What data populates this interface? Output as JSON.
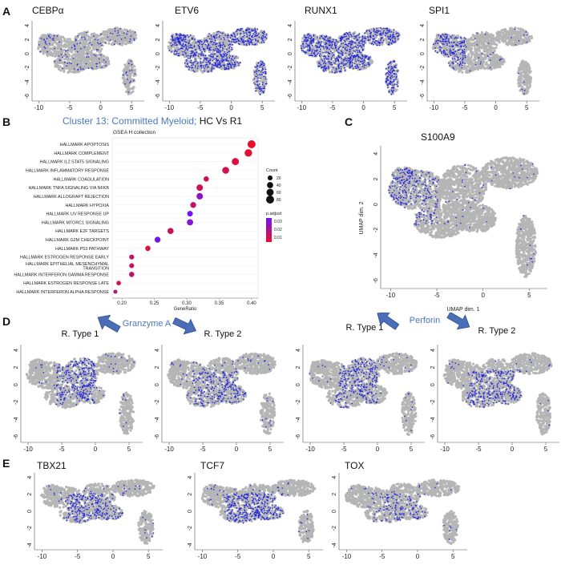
{
  "panel_letters": {
    "a": "A",
    "b": "B",
    "c": "C",
    "d": "D",
    "e": "E"
  },
  "colors": {
    "grey_cluster": "#b5b5b5",
    "blue_dot": "#1e22e0",
    "arrow_fill": "#4a6fb8",
    "arrow_stroke": "#2e4f8f",
    "title_blue": "#4a78c0"
  },
  "panel_a": {
    "markers": [
      "CEBPα",
      "ETV6",
      "RUNX1",
      "SPI1"
    ],
    "density": [
      0.1,
      0.55,
      0.6,
      0.5
    ],
    "x_ticks": [
      "-10",
      "-5",
      "0",
      "5"
    ],
    "y_ticks": [
      "4",
      "2",
      "0",
      "-2",
      "-4",
      "-6"
    ]
  },
  "panel_b": {
    "title_part1": "Cluster 13: Committed Myeloid;",
    "title_part2": " HC Vs R1",
    "subtitle": "GSEA H collection",
    "chart_data": {
      "type": "scatter",
      "title": "Cluster 13: Committed Myeloid; HC Vs R1",
      "subtitle": "GSEA H collection",
      "xlabel": "GeneRatio",
      "ylabel": "",
      "xlim": [
        0.185,
        0.41
      ],
      "x_ticks": [
        "0.20",
        "0.25",
        "0.30",
        "0.35",
        "0.40"
      ],
      "categories": [
        "HALLMARK APOPTOSIS",
        "HALLMARK COMPLEMENT",
        "HALLMARK IL2 STAT5 SIGNALING",
        "HALLMARK INFLAMMATORY RESPONSE",
        "HALLMARK COAGULATION",
        "HALLMARK TNFA SIGNALING VIA NFKB",
        "HALLMARK ALLOGRAFT REJECTION",
        "HALLMARK HYPOXIA",
        "HALLMARK UV RESPONSE UP",
        "HALLMARK MTORC1 SIGNALING",
        "HALLMARK E2F TARGETS",
        "HALLMARK G2M CHECKPOINT",
        "HALLMARK P53 PATHWAY",
        "HALLMARK ESTROGEN RESPONSE EARLY",
        "HALLMARK EPITHELIAL MESENCHYMAL TRANSITION",
        "HALLMARK INTERFERON GAMMA RESPONSE",
        "HALLMARK ESTROGEN RESPONSE LATE",
        "HALLMARK INTERFERON ALPHA RESPONSE"
      ],
      "label_lines": [
        [
          "HALLMARK APOPTOSIS"
        ],
        [
          "HALLMARK COMPLEMENT"
        ],
        [
          "HALLMARK IL2 STAT5 SIGNALING"
        ],
        [
          "HALLMARK INFLAMMATORY RESPONSE"
        ],
        [
          "HALLMARK COAGULATION"
        ],
        [
          "HALLMARK TNFA SIGNALING VIA NFKB"
        ],
        [
          "HALLMARK ALLOGRAFT REJECTION"
        ],
        [
          "HALLMARK HYPOXIA"
        ],
        [
          "HALLMARK UV RESPONSE UP"
        ],
        [
          "HALLMARK MTORC1 SIGNALING"
        ],
        [
          "HALLMARK E2F TARGETS"
        ],
        [
          "HALLMARK G2M CHECKPOINT"
        ],
        [
          "HALLMARK P53 PATHWAY"
        ],
        [
          "HALLMARK ESTROGEN RESPONSE EARLY"
        ],
        [
          "HALLMARK EPITHELIAL MESENCHYMAL",
          "TRANSITION"
        ],
        [
          "HALLMARK INTERFERON GAMMA RESPONSE"
        ],
        [
          "HALLMARK ESTROGEN RESPONSE LATE"
        ],
        [
          "HALLMARK INTERFERON ALPHA RESPONSE"
        ]
      ],
      "gene_ratio": [
        0.4,
        0.395,
        0.375,
        0.36,
        0.33,
        0.32,
        0.32,
        0.31,
        0.305,
        0.305,
        0.275,
        0.255,
        0.24,
        0.215,
        0.215,
        0.215,
        0.195,
        0.19
      ],
      "count": [
        80,
        70,
        60,
        55,
        25,
        45,
        45,
        35,
        30,
        40,
        40,
        35,
        25,
        20,
        20,
        25,
        15,
        10
      ],
      "p_adjust": [
        0.005,
        0.006,
        0.008,
        0.01,
        0.012,
        0.012,
        0.028,
        0.014,
        0.035,
        0.03,
        0.012,
        0.035,
        0.008,
        0.015,
        0.012,
        0.015,
        0.01,
        0.02
      ],
      "size_legend": {
        "title": "Count",
        "values": [
          "20",
          "40",
          "60",
          "80"
        ]
      },
      "color_legend": {
        "title": "p.adjust",
        "ticks": [
          "0.03",
          "0.02",
          "0.01"
        ],
        "low_color": "#e8102e",
        "high_color": "#7016f0"
      }
    }
  },
  "panel_c": {
    "title": "S100A9",
    "xlabel": "UMAP dim. 1",
    "ylabel": "UMAP dim. 2",
    "x_ticks": [
      "-10",
      "-5",
      "0",
      "5"
    ],
    "y_ticks": [
      "4",
      "2",
      "0",
      "-2",
      "-4",
      "-6"
    ]
  },
  "panel_d": {
    "granzyme_label": "Granzyme A",
    "perforin_label": "Perforin",
    "types": [
      "R. Type 1",
      "R. Type 2",
      "R. Type 1",
      "R. Type 2"
    ],
    "x_ticks": [
      "-10",
      "-5",
      "0",
      "5"
    ],
    "y_ticks": [
      "4",
      "2",
      "0",
      "-2",
      "-4",
      "-6"
    ]
  },
  "panel_e": {
    "markers": [
      "TBX21",
      "TCF7",
      "TOX"
    ],
    "x_ticks": [
      "-10",
      "-5",
      "0",
      "5"
    ],
    "y_ticks": [
      "4",
      "2",
      "0",
      "-2",
      "-4"
    ]
  }
}
